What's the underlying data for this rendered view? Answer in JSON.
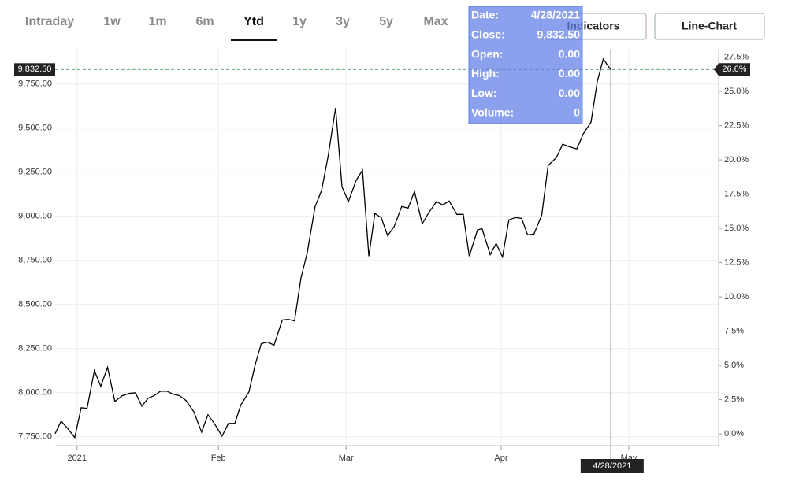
{
  "tabs": [
    {
      "label": "Intraday",
      "active": false
    },
    {
      "label": "1w",
      "active": false
    },
    {
      "label": "1m",
      "active": false
    },
    {
      "label": "6m",
      "active": false
    },
    {
      "label": "Ytd",
      "active": true
    },
    {
      "label": "1y",
      "active": false
    },
    {
      "label": "3y",
      "active": false
    },
    {
      "label": "5y",
      "active": false
    },
    {
      "label": "Max",
      "active": false
    }
  ],
  "buttons": [
    "Indicators",
    "Line-Chart"
  ],
  "tooltip": {
    "rows": [
      [
        "Date:",
        "4/28/2021"
      ],
      [
        "Close:",
        "9,832.50"
      ],
      [
        "Open:",
        "0.00"
      ],
      [
        "High:",
        "0.00"
      ],
      [
        "Low:",
        "0.00"
      ],
      [
        "Volume:",
        "0"
      ]
    ]
  },
  "chart_data": {
    "type": "line",
    "color": "#000000",
    "grid": true,
    "x": [
      -4.8,
      -3.5,
      -2.1,
      -0.5,
      0.9,
      2.2,
      3.8,
      5.2,
      6.7,
      8.3,
      9.9,
      11.4,
      12.8,
      14.2,
      15.6,
      16.9,
      18.3,
      19.7,
      21.1,
      22.5,
      23.9,
      25.6,
      27.3,
      28.7,
      30.1,
      31.8,
      33.2,
      34.6,
      35.9,
      37.7,
      39.1,
      40.4,
      41.8,
      43.2,
      45.0,
      46.3,
      47.7,
      49.1,
      50.5,
      52.2,
      53.6,
      55.0,
      56.7,
      58.1,
      59.5,
      61.2,
      62.6,
      64.0,
      65.3,
      66.7,
      68.1,
      69.5,
      71.2,
      72.6,
      74.0,
      75.7,
      77.1,
      78.8,
      80.2,
      81.6,
      83.3,
      84.7,
      86.0,
      87.8,
      88.8,
      90.6,
      91.9,
      93.3,
      94.7,
      96.1,
      97.5,
      98.8,
      100.2,
      101.9,
      103.3,
      105.1,
      106.5,
      107.8,
      109.6,
      111.0,
      112.7,
      114.1,
      115.4,
      117
    ],
    "values": [
      7768,
      7839,
      7799,
      7746,
      7915,
      7911,
      8126,
      8036,
      8144,
      7951,
      7983,
      7996,
      8000,
      7924,
      7969,
      7983,
      8009,
      8009,
      7991,
      7983,
      7956,
      7893,
      7777,
      7875,
      7826,
      7754,
      7826,
      7826,
      7929,
      8005,
      8161,
      8278,
      8287,
      8269,
      8412,
      8416,
      8407,
      8649,
      8796,
      9056,
      9145,
      9333,
      9615,
      9168,
      9083,
      9203,
      9262,
      8774,
      9016,
      8993,
      8890,
      8940,
      9056,
      9047,
      9141,
      8957,
      9020,
      9083,
      9065,
      9087,
      9011,
      9011,
      8774,
      8922,
      8931,
      8783,
      8846,
      8770,
      8980,
      8993,
      8989,
      8895,
      8899,
      9007,
      9288,
      9333,
      9409,
      9396,
      9382,
      9467,
      9534,
      9767,
      9892,
      9832.5
    ],
    "xlim": [
      -4.8,
      140.7
    ],
    "xticks": [
      {
        "value": 0,
        "label": "2021"
      },
      {
        "value": 31,
        "label": "Feb"
      },
      {
        "value": 59,
        "label": "Mar"
      },
      {
        "value": 93,
        "label": "Apr"
      },
      {
        "value": 121,
        "label": "May"
      }
    ],
    "ylim": [
      7700,
      9950
    ],
    "yticks": [
      {
        "value": 7750,
        "label": "7,750.00"
      },
      {
        "value": 8000,
        "label": "8,000.00"
      },
      {
        "value": 8250,
        "label": "8,250.00"
      },
      {
        "value": 8500,
        "label": "8,500.00"
      },
      {
        "value": 8750,
        "label": "8,750.00"
      },
      {
        "value": 9000,
        "label": "9,000.00"
      },
      {
        "value": 9250,
        "label": "9,250.00"
      },
      {
        "value": 9500,
        "label": "9,500.00"
      },
      {
        "value": 9750,
        "label": "9,750.00"
      }
    ],
    "y2lim": [
      -0.86,
      28.11
    ],
    "y2ticks": [
      {
        "value": 0,
        "label": "0.0%"
      },
      {
        "value": 2.5,
        "label": "2.5%"
      },
      {
        "value": 5,
        "label": "5.0%"
      },
      {
        "value": 7.5,
        "label": "7.5%"
      },
      {
        "value": 10,
        "label": "10.0%"
      },
      {
        "value": 12.5,
        "label": "12.5%"
      },
      {
        "value": 15,
        "label": "15.0%"
      },
      {
        "value": 17.5,
        "label": "17.5%"
      },
      {
        "value": 20,
        "label": "20.0%"
      },
      {
        "value": 22.5,
        "label": "22.5%"
      },
      {
        "value": 25,
        "label": "25.0%"
      },
      {
        "value": 27.5,
        "label": "27.5%"
      }
    ],
    "reference_line": {
      "value": 9832.5,
      "label": "9,832.50",
      "y2_value": 26.6,
      "y2_label": "26.6%"
    },
    "crosshair": {
      "x": 117,
      "label": "4/28/2021"
    }
  }
}
